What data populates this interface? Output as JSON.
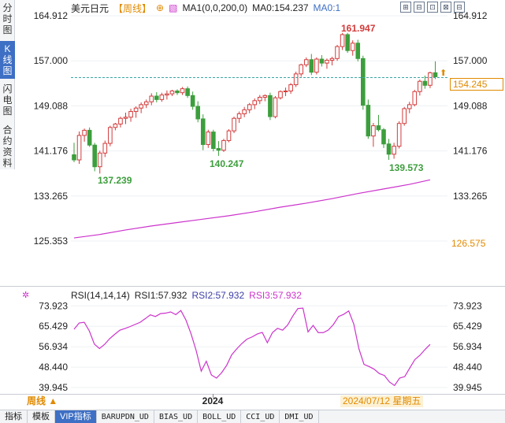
{
  "side_tabs": [
    {
      "label": "分时图",
      "active": false
    },
    {
      "label": "K线图",
      "active": true
    },
    {
      "label": "闪电图",
      "active": false
    },
    {
      "label": "合约资料",
      "active": false
    }
  ],
  "title": {
    "symbol": "美元日元",
    "period": "【周线】",
    "plus": "⊕",
    "ma1": "MA1(0,0,200,0)",
    "ma0": "MA0:154.237",
    "ma01": "MA0:1"
  },
  "window_buttons": [
    "⊞",
    "⊟",
    "⊡",
    "⊠",
    "⊟"
  ],
  "price_axis": {
    "left_labels": [
      "164.912",
      "157.000",
      "149.088",
      "141.176",
      "133.265",
      "125.353"
    ],
    "right_labels": [
      "164.912",
      "157.000",
      "149.088",
      "141.176",
      "133.265"
    ],
    "right_extra": "126.575",
    "current_price": "154.245"
  },
  "annotations": {
    "high": "161.947",
    "low1": "137.239",
    "low2": "140.247",
    "low3": "139.573"
  },
  "rsi": {
    "header": "RSI(14,14,14)",
    "rsi1": "RSI1:57.932",
    "rsi2": "RSI2:57.932",
    "rsi3": "RSI3:57.932",
    "left_labels": [
      "73.923",
      "65.429",
      "56.934",
      "48.440",
      "39.945"
    ],
    "right_labels": [
      "73.923",
      "65.429",
      "56.934",
      "48.440",
      "39.945"
    ]
  },
  "time_axis": {
    "year_label": "2024",
    "date_tag": "2024/07/12 星期五"
  },
  "period_button": "周线 ▲",
  "bottom_tabs": [
    "指标",
    "模板",
    "VIP指标",
    "BARUPDN_UD",
    "BIAS_UD",
    "BOLL_UD",
    "CCI_UD",
    "DMI_UD"
  ],
  "bottom_tab_active": 2,
  "colors": {
    "up": "#d33b3b",
    "down": "#3c9e3c",
    "ma": "#cc33cc",
    "accent": "#e08a00",
    "blue": "#3d6fc4"
  },
  "chart_data": {
    "type": "candlestick",
    "y_range": [
      125.353,
      164.912
    ],
    "candles": [
      [
        140.5,
        142.6,
        139.2,
        139.6
      ],
      [
        139.6,
        144.6,
        138.9,
        143.9
      ],
      [
        143.9,
        145.1,
        142.8,
        144.8
      ],
      [
        144.8,
        145.3,
        141.9,
        142.2
      ],
      [
        142.2,
        142.6,
        137.6,
        138.4
      ],
      [
        138.4,
        141.2,
        137.2,
        140.8
      ],
      [
        140.8,
        143.0,
        140.1,
        142.5
      ],
      [
        142.5,
        145.6,
        142.0,
        145.3
      ],
      [
        145.3,
        146.1,
        144.8,
        145.9
      ],
      [
        145.9,
        147.2,
        145.3,
        146.9
      ],
      [
        146.9,
        147.9,
        145.9,
        147.1
      ],
      [
        147.1,
        148.6,
        146.3,
        148.1
      ],
      [
        148.1,
        149.0,
        147.0,
        148.7
      ],
      [
        148.7,
        149.7,
        147.8,
        149.3
      ],
      [
        149.3,
        150.2,
        148.7,
        149.8
      ],
      [
        149.8,
        151.3,
        149.2,
        150.8
      ],
      [
        150.8,
        151.5,
        149.7,
        150.2
      ],
      [
        150.2,
        151.4,
        149.8,
        151.0
      ],
      [
        151.0,
        151.8,
        150.2,
        151.2
      ],
      [
        151.2,
        151.9,
        150.8,
        151.7
      ],
      [
        151.7,
        152.0,
        151.0,
        151.4
      ],
      [
        151.4,
        152.4,
        151.0,
        152.1
      ],
      [
        152.1,
        152.5,
        150.5,
        150.9
      ],
      [
        150.9,
        151.6,
        148.4,
        149.0
      ],
      [
        149.0,
        149.9,
        146.2,
        146.8
      ],
      [
        146.8,
        147.6,
        141.3,
        142.3
      ],
      [
        142.3,
        144.9,
        141.7,
        144.5
      ],
      [
        144.5,
        144.9,
        141.1,
        141.6
      ],
      [
        141.6,
        142.9,
        140.3,
        141.3
      ],
      [
        141.3,
        143.3,
        141.0,
        143.0
      ],
      [
        143.0,
        145.0,
        142.7,
        144.7
      ],
      [
        144.7,
        147.2,
        144.3,
        146.9
      ],
      [
        146.9,
        148.1,
        146.1,
        147.7
      ],
      [
        147.7,
        148.9,
        147.1,
        148.4
      ],
      [
        148.4,
        149.6,
        147.8,
        149.3
      ],
      [
        149.3,
        150.4,
        148.5,
        150.0
      ],
      [
        150.0,
        151.0,
        149.4,
        150.6
      ],
      [
        150.6,
        151.1,
        149.9,
        150.9
      ],
      [
        150.9,
        151.4,
        146.6,
        147.2
      ],
      [
        147.2,
        150.8,
        146.9,
        150.5
      ],
      [
        150.5,
        151.8,
        150.2,
        151.6
      ],
      [
        151.6,
        152.3,
        150.8,
        151.7
      ],
      [
        151.7,
        153.1,
        151.2,
        152.8
      ],
      [
        152.8,
        155.1,
        152.4,
        154.7
      ],
      [
        154.7,
        156.5,
        154.2,
        156.3
      ],
      [
        156.3,
        157.6,
        155.9,
        157.2
      ],
      [
        157.2,
        158.2,
        154.5,
        155.0
      ],
      [
        155.0,
        157.6,
        154.6,
        157.3
      ],
      [
        157.3,
        158.0,
        156.0,
        156.6
      ],
      [
        156.6,
        157.4,
        155.6,
        157.1
      ],
      [
        157.1,
        157.7,
        156.2,
        157.4
      ],
      [
        157.4,
        159.8,
        157.0,
        159.5
      ],
      [
        159.5,
        161.9,
        158.9,
        161.6
      ],
      [
        161.6,
        161.9,
        158.4,
        158.8
      ],
      [
        158.8,
        160.6,
        157.9,
        160.1
      ],
      [
        160.1,
        160.7,
        156.9,
        157.4
      ],
      [
        157.4,
        157.9,
        148.4,
        149.2
      ],
      [
        149.2,
        150.2,
        143.3,
        143.8
      ],
      [
        143.8,
        146.1,
        141.9,
        145.6
      ],
      [
        145.6,
        147.5,
        144.6,
        144.9
      ],
      [
        144.9,
        145.2,
        141.7,
        142.4
      ],
      [
        142.4,
        143.3,
        139.6,
        140.6
      ],
      [
        140.6,
        142.6,
        139.8,
        142.0
      ],
      [
        142.0,
        146.4,
        141.6,
        146.0
      ],
      [
        146.0,
        148.9,
        145.6,
        148.6
      ],
      [
        148.6,
        149.8,
        147.8,
        149.3
      ],
      [
        149.3,
        151.9,
        149.0,
        151.6
      ],
      [
        151.6,
        153.7,
        150.9,
        153.4
      ],
      [
        153.4,
        154.4,
        152.1,
        152.7
      ],
      [
        152.7,
        155.1,
        152.2,
        154.9
      ],
      [
        154.9,
        156.9,
        153.8,
        154.2
      ]
    ],
    "ma200": [
      [
        0,
        125.9
      ],
      [
        5,
        126.5
      ],
      [
        10,
        127.3
      ],
      [
        15,
        128.0
      ],
      [
        20,
        128.6
      ],
      [
        25,
        129.2
      ],
      [
        30,
        129.8
      ],
      [
        35,
        130.5
      ],
      [
        40,
        131.3
      ],
      [
        45,
        132.0
      ],
      [
        50,
        132.8
      ],
      [
        55,
        133.7
      ],
      [
        60,
        134.5
      ],
      [
        65,
        135.3
      ],
      [
        69,
        136.1
      ]
    ],
    "rsi_series": [
      [
        0,
        64.2
      ],
      [
        1,
        66.8
      ],
      [
        2,
        67.1
      ],
      [
        3,
        63.5
      ],
      [
        4,
        58.0
      ],
      [
        5,
        56.2
      ],
      [
        6,
        57.9
      ],
      [
        7,
        60.3
      ],
      [
        8,
        62.1
      ],
      [
        9,
        63.8
      ],
      [
        10,
        64.5
      ],
      [
        11,
        65.3
      ],
      [
        12,
        66.2
      ],
      [
        13,
        67.1
      ],
      [
        14,
        68.6
      ],
      [
        15,
        70.2
      ],
      [
        16,
        69.5
      ],
      [
        17,
        70.7
      ],
      [
        18,
        70.9
      ],
      [
        19,
        71.4
      ],
      [
        20,
        70.3
      ],
      [
        21,
        72.0
      ],
      [
        22,
        68.0
      ],
      [
        23,
        62.3
      ],
      [
        24,
        55.4
      ],
      [
        25,
        46.8
      ],
      [
        26,
        50.9
      ],
      [
        27,
        45.2
      ],
      [
        28,
        43.9
      ],
      [
        29,
        46.1
      ],
      [
        30,
        49.2
      ],
      [
        31,
        53.6
      ],
      [
        32,
        56.1
      ],
      [
        33,
        58.3
      ],
      [
        34,
        60.1
      ],
      [
        35,
        61.0
      ],
      [
        36,
        62.2
      ],
      [
        37,
        62.9
      ],
      [
        38,
        58.6
      ],
      [
        39,
        62.8
      ],
      [
        40,
        64.6
      ],
      [
        41,
        63.8
      ],
      [
        42,
        66.0
      ],
      [
        43,
        69.7
      ],
      [
        44,
        72.8
      ],
      [
        45,
        73.0
      ],
      [
        46,
        63.1
      ],
      [
        47,
        65.8
      ],
      [
        48,
        62.8
      ],
      [
        49,
        62.8
      ],
      [
        50,
        63.9
      ],
      [
        51,
        66.2
      ],
      [
        52,
        69.5
      ],
      [
        53,
        70.4
      ],
      [
        54,
        71.8
      ],
      [
        55,
        66.3
      ],
      [
        56,
        56.1
      ],
      [
        57,
        49.6
      ],
      [
        58,
        48.7
      ],
      [
        59,
        47.6
      ],
      [
        60,
        45.8
      ],
      [
        61,
        45.0
      ],
      [
        62,
        42.3
      ],
      [
        63,
        40.8
      ],
      [
        64,
        43.9
      ],
      [
        65,
        44.5
      ],
      [
        66,
        48.1
      ],
      [
        67,
        51.6
      ],
      [
        68,
        53.4
      ],
      [
        69,
        55.8
      ],
      [
        70,
        57.9
      ]
    ]
  }
}
